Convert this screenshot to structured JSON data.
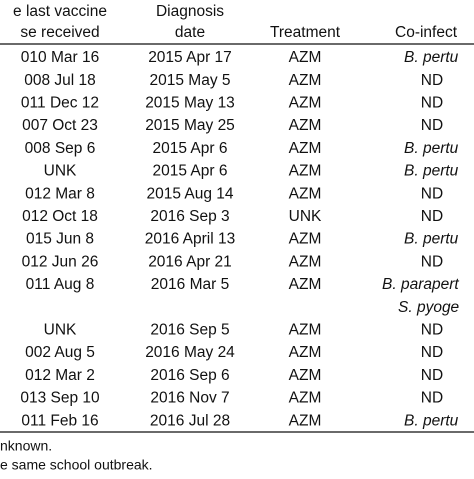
{
  "table": {
    "header": [
      [
        "e last vaccine",
        "se received"
      ],
      [
        "Diagnosis",
        "date"
      ],
      [
        "Treatment"
      ],
      [
        "Co-infect"
      ]
    ],
    "rows": [
      [
        "010 Mar 16",
        "2015 Apr 17",
        "AZM",
        [
          "B. pertu"
        ]
      ],
      [
        "008 Jul 18",
        "2015 May 5",
        "AZM",
        [
          "ND"
        ]
      ],
      [
        "011 Dec 12",
        "2015 May 13",
        "AZM",
        [
          "ND"
        ]
      ],
      [
        "007 Oct 23",
        "2015 May 25",
        "AZM",
        [
          "ND"
        ]
      ],
      [
        "008 Sep 6",
        "2015 Apr 6",
        "AZM",
        [
          "B. pertu"
        ]
      ],
      [
        "UNK",
        "2015 Apr 6",
        "AZM",
        [
          "B. pertu"
        ]
      ],
      [
        "012 Mar 8",
        "2015 Aug 14",
        "AZM",
        [
          "ND"
        ]
      ],
      [
        "012 Oct 18",
        "2016 Sep 3",
        "UNK",
        [
          "ND"
        ]
      ],
      [
        "015 Jun 8",
        "2016 April 13",
        "AZM",
        [
          "B. pertu"
        ]
      ],
      [
        "012 Jun 26",
        "2016 Apr 21",
        "AZM",
        [
          "ND"
        ]
      ],
      [
        "011 Aug 8",
        "2016 Mar 5",
        "AZM",
        [
          "B. parapert",
          "S. pyoge"
        ]
      ],
      [
        "UNK",
        "2016 Sep 5",
        "AZM",
        [
          "ND"
        ]
      ],
      [
        "002 Aug 5",
        "2016 May 24",
        "AZM",
        [
          "ND"
        ]
      ],
      [
        "012 Mar 2",
        "2016 Sep 6",
        "AZM",
        [
          "ND"
        ]
      ],
      [
        "013 Sep 10",
        "2016 Nov 7",
        "AZM",
        [
          "ND"
        ]
      ],
      [
        "011 Feb 16",
        "2016 Jul 28",
        "AZM",
        [
          "B. pertu"
        ]
      ]
    ],
    "footnotes": [
      "nknown.",
      "e same school outbreak."
    ]
  }
}
